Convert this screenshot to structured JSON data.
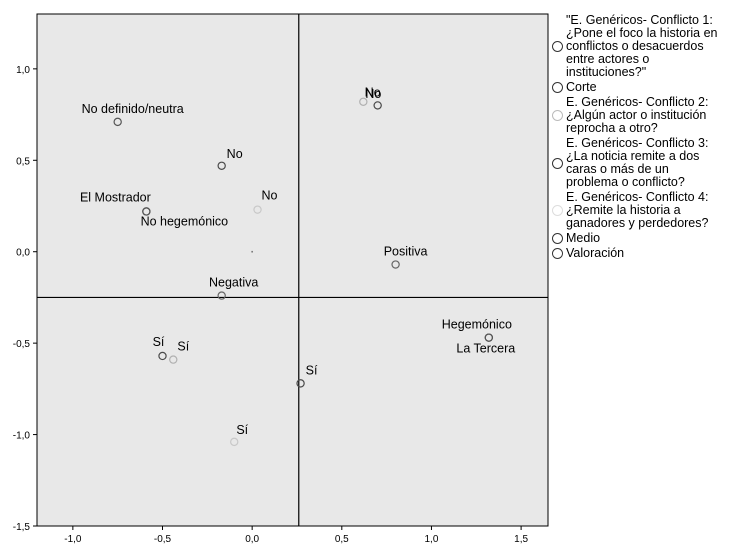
{
  "chart_data": {
    "type": "scatter",
    "xlim": [
      -1.2,
      1.65
    ],
    "ylim": [
      -1.5,
      1.3
    ],
    "x_ticks": [
      -1.0,
      -0.5,
      0.0,
      0.5,
      1.0,
      1.5
    ],
    "x_tick_labels": [
      "-1,0",
      "-0,5",
      "0,0",
      "0,5",
      "1,0",
      "1,5"
    ],
    "y_ticks": [
      -1.5,
      -1.0,
      -0.5,
      0.0,
      0.5,
      1.0
    ],
    "y_tick_labels": [
      "-1,5",
      "-1,0",
      "-0,5",
      "0,0",
      "0,5",
      "1,0"
    ],
    "reference_lines": {
      "vertical_x": 0.26,
      "horizontal_y": -0.25
    },
    "grid": false,
    "legend_position": "right",
    "plot_background": "#e8e8e8",
    "series": [
      {
        "name": "\"E. Genéricos- Conflicto 1: ¿Pone el foco la historia en conflictos o desacuerdos entre actores o instituciones?\"",
        "color": "#4a4a4a",
        "points": [
          {
            "x": 0.7,
            "y": 0.8,
            "label": "No"
          },
          {
            "x": -0.5,
            "y": -0.57,
            "label": "Sí"
          }
        ]
      },
      {
        "name": "Corte",
        "color": "#555555",
        "points": [
          {
            "x": -0.59,
            "y": 0.22,
            "label": "El Mostrador"
          },
          {
            "x": 1.32,
            "y": -0.47,
            "label": "La Tercera"
          }
        ]
      },
      {
        "name": "E. Genéricos- Conflicto 2: ¿Algún actor o institución reprocha a otro?",
        "color": "#c8c8c8",
        "points": [
          {
            "x": 0.03,
            "y": 0.23,
            "label": "No"
          },
          {
            "x": -0.1,
            "y": -1.04,
            "label": "Sí"
          }
        ]
      },
      {
        "name": "E. Genéricos- Conflicto 3: ¿La noticia remite a dos caras o más de un problema o conflicto?",
        "color": "#4a4a4a",
        "points": [
          {
            "x": -0.17,
            "y": 0.47,
            "label": "No"
          },
          {
            "x": 0.27,
            "y": -0.72,
            "label": "Sí"
          }
        ]
      },
      {
        "name": "E. Genéricos- Conflicto 4: ¿Remite la historia a ganadores y perdedores?",
        "color": "#b0b0b0",
        "points": [
          {
            "x": 0.62,
            "y": 0.82,
            "label": "No"
          },
          {
            "x": -0.44,
            "y": -0.59,
            "label": "Sí"
          }
        ]
      },
      {
        "name": "Medio",
        "color": "#555555",
        "points": [
          {
            "x": -0.75,
            "y": 0.71,
            "label": "No definido/neutra"
          },
          {
            "x": -0.59,
            "y": 0.22,
            "label": "No hegemónico"
          },
          {
            "x": 1.32,
            "y": -0.47,
            "label": "Hegemónico"
          }
        ]
      },
      {
        "name": "Valoración",
        "color": "#666666",
        "points": [
          {
            "x": 0.8,
            "y": -0.07,
            "label": "Positiva"
          },
          {
            "x": -0.17,
            "y": -0.24,
            "label": "Negativa"
          }
        ]
      }
    ],
    "extra_marks": [
      {
        "x": 0.0,
        "y": 0.0
      }
    ],
    "point_labels": [
      {
        "series": 0,
        "point": 0,
        "text": "No"
      },
      {
        "series": 0,
        "point": 1,
        "text": "Sí"
      },
      {
        "series": 1,
        "point": 0,
        "text": "El Mostrador"
      },
      {
        "series": 1,
        "point": 1,
        "text": "La Tercera"
      },
      {
        "series": 2,
        "point": 0,
        "text": "No"
      },
      {
        "series": 2,
        "point": 1,
        "text": "Sí"
      },
      {
        "series": 3,
        "point": 0,
        "text": "No"
      },
      {
        "series": 3,
        "point": 1,
        "text": "Sí"
      },
      {
        "series": 4,
        "point": 0,
        "text": "No"
      },
      {
        "series": 4,
        "point": 1,
        "text": "Sí"
      },
      {
        "series": 5,
        "point": 0,
        "text": "No definido/neutra"
      },
      {
        "series": 5,
        "point": 1,
        "text": "No hegemónico"
      },
      {
        "series": 5,
        "point": 2,
        "text": "Hegemónico"
      },
      {
        "series": 6,
        "point": 0,
        "text": "Positiva"
      },
      {
        "series": 6,
        "point": 1,
        "text": "Negativa"
      }
    ]
  },
  "legend": {
    "items": [
      {
        "label": "\"E. Genéricos- Conflicto 1:\n¿Pone el foco la historia en\nconflictos o desacuerdos\nentre actores o\ninstituciones?\"",
        "color": "#333333"
      },
      {
        "label": "Corte",
        "color": "#333333"
      },
      {
        "label": "E. Genéricos- Conflicto 2:\n¿Algún actor o institución\nreprocha a otro?",
        "color": "#bbbbbb"
      },
      {
        "label": "E. Genéricos- Conflicto 3:\n¿La noticia remite a dos\ncaras o más de un\nproblema o conflicto?",
        "color": "#333333"
      },
      {
        "label": "E. Genéricos- Conflicto 4:\n¿Remite la historia a\nganadores y perdedores?",
        "color": "#dddddd"
      },
      {
        "label": "Medio",
        "color": "#333333"
      },
      {
        "label": "Valoración",
        "color": "#333333"
      }
    ]
  }
}
